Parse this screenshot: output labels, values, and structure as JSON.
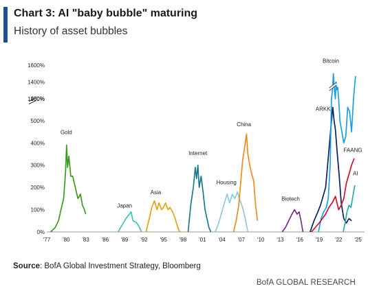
{
  "header": {
    "title": "Chart 3: AI \"baby bubble\" maturing",
    "subtitle": "History of asset bubbles"
  },
  "footer": {
    "source_label": "Source",
    "source_text": ": BofA Global Investment Strategy, Bloomberg",
    "brand": "BofA GLOBAL RESEARCH"
  },
  "colors": {
    "accent": "#1f4e96"
  },
  "chart_data": {
    "type": "line",
    "title": "",
    "xlabel": "",
    "ylabel": "",
    "xlim": [
      1977,
      2026
    ],
    "ylim": [
      0,
      1600
    ],
    "y_axis_break": [
      700,
      1200
    ],
    "x_ticks": [
      "'77",
      "'80",
      "'83",
      "'86",
      "'89",
      "'92",
      "'95",
      "'98",
      "'01",
      "'04",
      "'07",
      "'10",
      "'13",
      "'16",
      "'19",
      "'22",
      "'25"
    ],
    "x_tick_years": [
      1977,
      1980,
      1983,
      1986,
      1989,
      1992,
      1995,
      1998,
      2001,
      2004,
      2007,
      2010,
      2013,
      2016,
      2019,
      2022,
      2025
    ],
    "y_ticks": [
      {
        "value": 0,
        "label": "0%"
      },
      {
        "value": 100,
        "label": "100%"
      },
      {
        "value": 200,
        "label": "200%"
      },
      {
        "value": 300,
        "label": "300%"
      },
      {
        "value": 400,
        "label": "400%"
      },
      {
        "value": 500,
        "label": "500%"
      },
      {
        "value": 600,
        "label": "600%"
      },
      {
        "value": 1200,
        "label": "1200%"
      },
      {
        "value": 1400,
        "label": "1400%"
      },
      {
        "value": 1600,
        "label": "1600%"
      }
    ],
    "grid": false,
    "series": [
      {
        "name": "Gold",
        "color": "#3a9a1c",
        "label_at": [
          1980.0,
          440
        ],
        "x": [
          1977.6,
          1978.3,
          1978.8,
          1979.2,
          1979.6,
          1979.9,
          1980.05,
          1980.2,
          1980.4,
          1980.7,
          1981.0,
          1981.4,
          1981.8,
          1982.2,
          1982.5,
          1982.8,
          1983.0
        ],
        "y": [
          0,
          20,
          50,
          100,
          150,
          270,
          390,
          290,
          340,
          250,
          250,
          200,
          150,
          170,
          120,
          100,
          80
        ]
      },
      {
        "name": "Japan",
        "color": "#3ec4b4",
        "label_at": [
          1989.0,
          110
        ],
        "x": [
          1988.0,
          1988.4,
          1988.8,
          1989.2,
          1989.6,
          1990.0,
          1990.3,
          1990.7,
          1991.0,
          1991.3,
          1991.6
        ],
        "y": [
          0,
          20,
          40,
          60,
          75,
          90,
          50,
          45,
          35,
          20,
          0
        ]
      },
      {
        "name": "Asia",
        "color": "#e8a012",
        "label_at": [
          1993.8,
          170
        ],
        "x": [
          1992.3,
          1992.8,
          1993.2,
          1993.6,
          1994.0,
          1994.3,
          1994.7,
          1995.0,
          1995.3,
          1995.7,
          1996.0,
          1996.4,
          1996.8,
          1997.2,
          1997.5
        ],
        "y": [
          0,
          60,
          110,
          140,
          100,
          130,
          100,
          110,
          130,
          100,
          110,
          90,
          60,
          20,
          0
        ]
      },
      {
        "name": "Internet",
        "color": "#1a7a8c",
        "label_at": [
          2000.3,
          345
        ],
        "x": [
          1998.8,
          1999.2,
          1999.6,
          1999.9,
          2000.1,
          2000.3,
          2000.5,
          2000.8,
          2001.1,
          2001.4,
          2001.7,
          2002.0,
          2002.3
        ],
        "y": [
          0,
          120,
          200,
          290,
          240,
          300,
          200,
          250,
          180,
          100,
          60,
          20,
          0
        ]
      },
      {
        "name": "Housing",
        "color": "#8cc8e0",
        "label_at": [
          2004.7,
          215
        ],
        "x": [
          2003.0,
          2003.5,
          2004.0,
          2004.4,
          2004.8,
          2005.2,
          2005.6,
          2006.0,
          2006.4,
          2006.8,
          2007.2,
          2007.6,
          2008.0
        ],
        "y": [
          0,
          40,
          90,
          130,
          170,
          130,
          170,
          150,
          180,
          140,
          110,
          60,
          0
        ]
      },
      {
        "name": "China",
        "color": "#f08a1c",
        "label_at": [
          2007.4,
          475
        ],
        "x": [
          2005.8,
          2006.2,
          2006.6,
          2006.9,
          2007.2,
          2007.5,
          2007.8,
          2008.0,
          2008.3,
          2008.6,
          2008.9,
          2009.2,
          2009.5
        ],
        "y": [
          0,
          50,
          120,
          220,
          320,
          380,
          440,
          350,
          300,
          260,
          230,
          120,
          50
        ]
      },
      {
        "name": "Biotech",
        "color": "#7a2a8a",
        "label_at": [
          2014.6,
          140
        ],
        "x": [
          2013.3,
          2013.8,
          2014.3,
          2014.8,
          2015.2,
          2015.6,
          2015.9,
          2016.2,
          2016.5
        ],
        "y": [
          0,
          20,
          50,
          80,
          100,
          80,
          90,
          50,
          0
        ]
      },
      {
        "name": "ARKK",
        "color": "#0d1f5c",
        "label_at": [
          2019.6,
          545
        ],
        "x": [
          2017.6,
          2018.2,
          2018.8,
          2019.2,
          2019.6,
          2020.0,
          2020.3,
          2020.6,
          2020.9,
          2021.1,
          2021.3,
          2021.5,
          2021.8,
          2022.1,
          2022.4,
          2022.8,
          2023.2,
          2023.6,
          2024.0
        ],
        "y": [
          0,
          50,
          90,
          120,
          160,
          200,
          300,
          400,
          500,
          560,
          500,
          460,
          350,
          250,
          130,
          60,
          40,
          60,
          50
        ]
      },
      {
        "name": "Bitcoin",
        "color": "#1aa0e0",
        "label_at": [
          2020.8,
          1630
        ],
        "x": [
          2018.9,
          2019.3,
          2019.7,
          2020.1,
          2020.4,
          2020.7,
          2020.9,
          2021.05,
          2021.2,
          2021.35,
          2021.5,
          2021.6,
          2021.7,
          2021.85,
          2022.0,
          2022.2,
          2022.5,
          2022.8,
          2023.1,
          2023.4,
          2023.7,
          2024.0,
          2024.3,
          2024.6
        ],
        "y": [
          0,
          60,
          90,
          110,
          150,
          300,
          600,
          1300,
          1500,
          1000,
          1200,
          1400,
          1000,
          650,
          600,
          500,
          450,
          400,
          430,
          560,
          540,
          450,
          600,
          700
        ]
      },
      {
        "name": "FAANG",
        "color": "#c8102e",
        "label_at": [
          2024.2,
          360
        ],
        "x": [
          2017.8,
          2018.4,
          2019.0,
          2019.5,
          2020.0,
          2020.5,
          2021.0,
          2021.5,
          2022.0,
          2022.4,
          2022.8,
          2023.2,
          2023.6,
          2024.0,
          2024.4
        ],
        "y": [
          0,
          20,
          40,
          60,
          80,
          110,
          130,
          160,
          100,
          120,
          150,
          220,
          260,
          300,
          330
        ]
      },
      {
        "name": "AI",
        "color": "#20b0a0",
        "label_at": [
          2024.6,
          255
        ],
        "x": [
          2022.7,
          2023.0,
          2023.3,
          2023.6,
          2023.9,
          2024.2,
          2024.5
        ],
        "y": [
          0,
          40,
          90,
          120,
          110,
          160,
          210
        ]
      }
    ]
  }
}
